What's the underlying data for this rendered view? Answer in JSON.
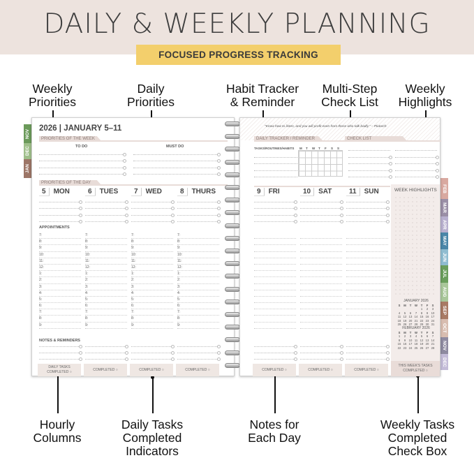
{
  "header": {
    "title": "DAILY & WEEKLY PLANNING",
    "banner": "FOCUSED PROGRESS TRACKING"
  },
  "callouts_top": [
    {
      "line1": "Weekly",
      "line2": "Priorities"
    },
    {
      "line1": "Daily",
      "line2": "Priorities"
    },
    {
      "line1": "Habit Tracker",
      "line2": "& Reminder"
    },
    {
      "line1": "Multi-Step",
      "line2": "Check List"
    },
    {
      "line1": "Weekly",
      "line2": "Highlights"
    }
  ],
  "callouts_bottom": [
    {
      "line1": "Hourly",
      "line2": "Columns",
      "line3": ""
    },
    {
      "line1": "Daily Tasks",
      "line2": "Completed",
      "line3": "Indicators"
    },
    {
      "line1": "Notes for",
      "line2": "Each Day",
      "line3": ""
    },
    {
      "line1": "Weekly Tasks",
      "line2": "Completed",
      "line3": "Check Box"
    }
  ],
  "left_page": {
    "week_title": "2026 | JANUARY 5–11",
    "priorities_week": "PRIORITIES OF THE WEEK",
    "todo": "TO DO",
    "mustdo": "MUST DO",
    "priorities_day": "PRIORITIES OF THE DAY",
    "days": [
      {
        "num": "5",
        "name": "MON"
      },
      {
        "num": "6",
        "name": "TUES"
      },
      {
        "num": "7",
        "name": "WED"
      },
      {
        "num": "8",
        "name": "THURS"
      }
    ],
    "appointments": "APPOINTMENTS",
    "notes": "NOTES & REMINDERS",
    "daily_tasks_label": "DAILY TASKS",
    "completed": "COMPLETED ○"
  },
  "hours": [
    "7:",
    "8:",
    "9:",
    "10:",
    "11:",
    "12:",
    "1:",
    "2:",
    "3:",
    "4:",
    "5:",
    "6:",
    "7:",
    "8:",
    "9:"
  ],
  "right_page": {
    "quote": "\"Know how to listen, and you will profit even from those who talk badly.\" – Plutarch",
    "tracker": "DAILY TRACKER / REMINDER",
    "checklist": "CHECK LIST",
    "tracker_head": "TASKS/ROUTINES/HABITS",
    "weekdays": [
      "M",
      "T",
      "W",
      "T",
      "F",
      "S",
      "S"
    ],
    "days": [
      {
        "num": "9",
        "name": "FRI"
      },
      {
        "num": "10",
        "name": "SAT"
      },
      {
        "num": "11",
        "name": "SUN"
      }
    ],
    "highlights": "WEEK HIGHLIGHTS",
    "cal1": "JANUARY 2026",
    "cal2": "FEBRUARY 2026",
    "weekly_done_1": "THIS WEEK'S TASKS",
    "weekly_done_2": "COMPLETED ○",
    "completed": "COMPLETED ○"
  },
  "tabs_left": [
    {
      "label": "NOV",
      "color": "#6b9a5a"
    },
    {
      "label": "DEC",
      "color": "#9fbf8a"
    },
    {
      "label": "JAN",
      "color": "#9c7566"
    }
  ],
  "tabs_right": [
    {
      "label": "FEB",
      "color": "#d9a9a0"
    },
    {
      "label": "MAR",
      "color": "#9a8fa6"
    },
    {
      "label": "APR",
      "color": "#b8b0cf"
    },
    {
      "label": "MAY",
      "color": "#4a86a8"
    },
    {
      "label": "JUN",
      "color": "#8fbcd0"
    },
    {
      "label": "JUL",
      "color": "#6a9e5c"
    },
    {
      "label": "AUG",
      "color": "#a9c79a"
    },
    {
      "label": "SEP",
      "color": "#a87a64"
    },
    {
      "label": "OCT",
      "color": "#d8bdb0"
    },
    {
      "label": "NOV",
      "color": "#8e8aa0"
    },
    {
      "label": "DEC",
      "color": "#c4bcd8"
    }
  ]
}
